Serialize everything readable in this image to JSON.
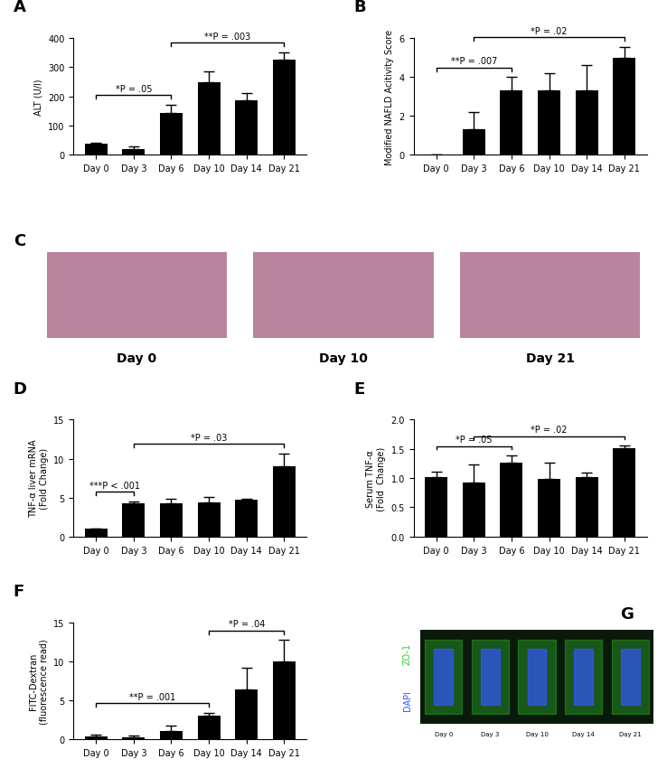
{
  "chart_data": [
    {
      "type": "bar",
      "title": "A",
      "ylabel": "ALT (U/l)",
      "color": "#000000",
      "categories": [
        "Day 0",
        "Day 3",
        "Day 6",
        "Day 10",
        "Day 14",
        "Day 21"
      ],
      "values": [
        38,
        20,
        142,
        250,
        187,
        327
      ],
      "errors": [
        3,
        8,
        30,
        35,
        25,
        25
      ],
      "ylim": [
        0,
        400
      ],
      "yticks": [
        0,
        100,
        200,
        300,
        400
      ],
      "annotations": [
        {
          "from": "Day 0",
          "to": "Day 6",
          "text": "*P = .05"
        },
        {
          "from": "Day 6",
          "to": "Day 21",
          "text": "**P = .003"
        }
      ]
    },
    {
      "type": "bar",
      "title": "B",
      "ylabel": "Modified NAFLD Acitivity Score",
      "color": "#000000",
      "categories": [
        "Day 0",
        "Day 3",
        "Day 6",
        "Day 10",
        "Day 14",
        "Day 21"
      ],
      "values": [
        0,
        1.33,
        3.33,
        3.33,
        3.33,
        5
      ],
      "errors": [
        0,
        0.85,
        0.67,
        0.85,
        1.3,
        0.55
      ],
      "ylim": [
        0,
        6
      ],
      "yticks": [
        0,
        2,
        4,
        6
      ],
      "annotations": [
        {
          "from": "Day 0",
          "to": "Day 6",
          "text": "**P = .007"
        },
        {
          "from": "Day 3",
          "to": "Day 21",
          "text": "*P = .02"
        }
      ]
    },
    {
      "type": "bar",
      "title": "D",
      "ylabel": "TNF-α liver mRNA\n(Fold Change)",
      "color": "#000000",
      "categories": [
        "Day 0",
        "Day 3",
        "Day 6",
        "Day 10",
        "Day 14",
        "Day 21"
      ],
      "values": [
        1,
        4.3,
        4.3,
        4.4,
        4.7,
        9
      ],
      "errors": [
        0.05,
        0.25,
        0.55,
        0.7,
        0.1,
        1.7
      ],
      "ylim": [
        0,
        15
      ],
      "yticks": [
        0,
        5,
        10,
        15
      ],
      "annotations": [
        {
          "from": "Day 0",
          "to": "Day 3",
          "text": "***P < .001"
        },
        {
          "from": "Day 3",
          "to": "Day 21",
          "text": "*P = .03"
        }
      ]
    },
    {
      "type": "bar",
      "title": "E",
      "ylabel": "Serum TNF-α\n(Fold  Change)",
      "color": "#000000",
      "categories": [
        "Day 0",
        "Day 3",
        "Day 6",
        "Day 10",
        "Day 14",
        "Day 21"
      ],
      "values": [
        1.01,
        0.93,
        1.27,
        0.99,
        1.02,
        1.51
      ],
      "errors": [
        0.1,
        0.3,
        0.12,
        0.27,
        0.08,
        0.05
      ],
      "ylim": [
        0,
        2.0
      ],
      "yticks": [
        {
          "value": 0,
          "label": "0.0"
        },
        {
          "value": 0.5,
          "label": "0.5"
        },
        {
          "value": 1.0,
          "label": "1.0"
        },
        {
          "value": 1.5,
          "label": "1.5"
        },
        {
          "value": 2.0,
          "label": "2.0"
        }
      ],
      "annotations": [
        {
          "from": "Day 0",
          "to": "Day 6",
          "text": "*P = .05"
        },
        {
          "from": "Day 3",
          "to": "Day 21",
          "text": "*P = .02"
        }
      ]
    },
    {
      "type": "bar",
      "title": "F",
      "ylabel": "FITC-Dextran\n(fluorescence read)",
      "color": "#000000",
      "categories": [
        "Day 0",
        "Day 3",
        "Day 6",
        "Day 10",
        "Day 14",
        "Day 21"
      ],
      "values": [
        0.3,
        0.25,
        1.0,
        3.0,
        6.4,
        10
      ],
      "errors": [
        0.25,
        0.15,
        0.7,
        0.4,
        2.7,
        2.7
      ],
      "ylim": [
        0,
        15
      ],
      "yticks": [
        0,
        5,
        10,
        15
      ],
      "annotations": [
        {
          "from": "Day 0",
          "to": "Day 10",
          "text": "**P = .001"
        },
        {
          "from": "Day 10",
          "to": "Day 21",
          "text": "*P = .04"
        }
      ]
    }
  ],
  "images": [
    {
      "title": "C",
      "labels": [
        "Day 0",
        "Day 10",
        "Day 21"
      ],
      "color": "#b8849e"
    },
    {
      "title": "G",
      "labels": [
        "Day 0",
        "Day 3",
        "Day 10",
        "Day 14",
        "Day 21"
      ],
      "channels": [
        {
          "name": "ZO-1",
          "color": "#33cc33"
        },
        {
          "name": "DAPI",
          "color": "#3355ff"
        }
      ]
    }
  ]
}
